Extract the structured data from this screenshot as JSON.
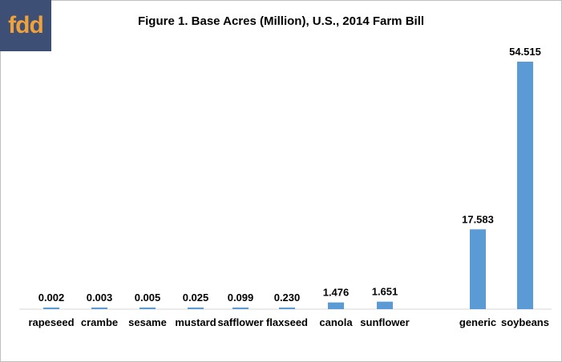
{
  "logo": {
    "text": "fdd"
  },
  "chart_data": {
    "type": "bar",
    "title": "Figure 1. Base Acres (Million), U.S., 2014 Farm Bill",
    "categories": [
      "rapeseed",
      "crambe",
      "sesame",
      "mustard",
      "safflower",
      "flaxseed",
      "canola",
      "sunflower",
      "generic",
      "soybeans"
    ],
    "values": [
      0.002,
      0.003,
      0.005,
      0.025,
      0.099,
      0.23,
      1.476,
      1.651,
      17.583,
      54.515
    ],
    "value_labels": [
      "0.002",
      "0.003",
      "0.005",
      "0.025",
      "0.099",
      "0.230",
      "1.476",
      "1.651",
      "17.583",
      "54.515"
    ],
    "bar_color": "#5b9bd5",
    "xlabel": "",
    "ylabel": "",
    "ylim": [
      0,
      54.515
    ],
    "grid": false,
    "legend": "none"
  }
}
